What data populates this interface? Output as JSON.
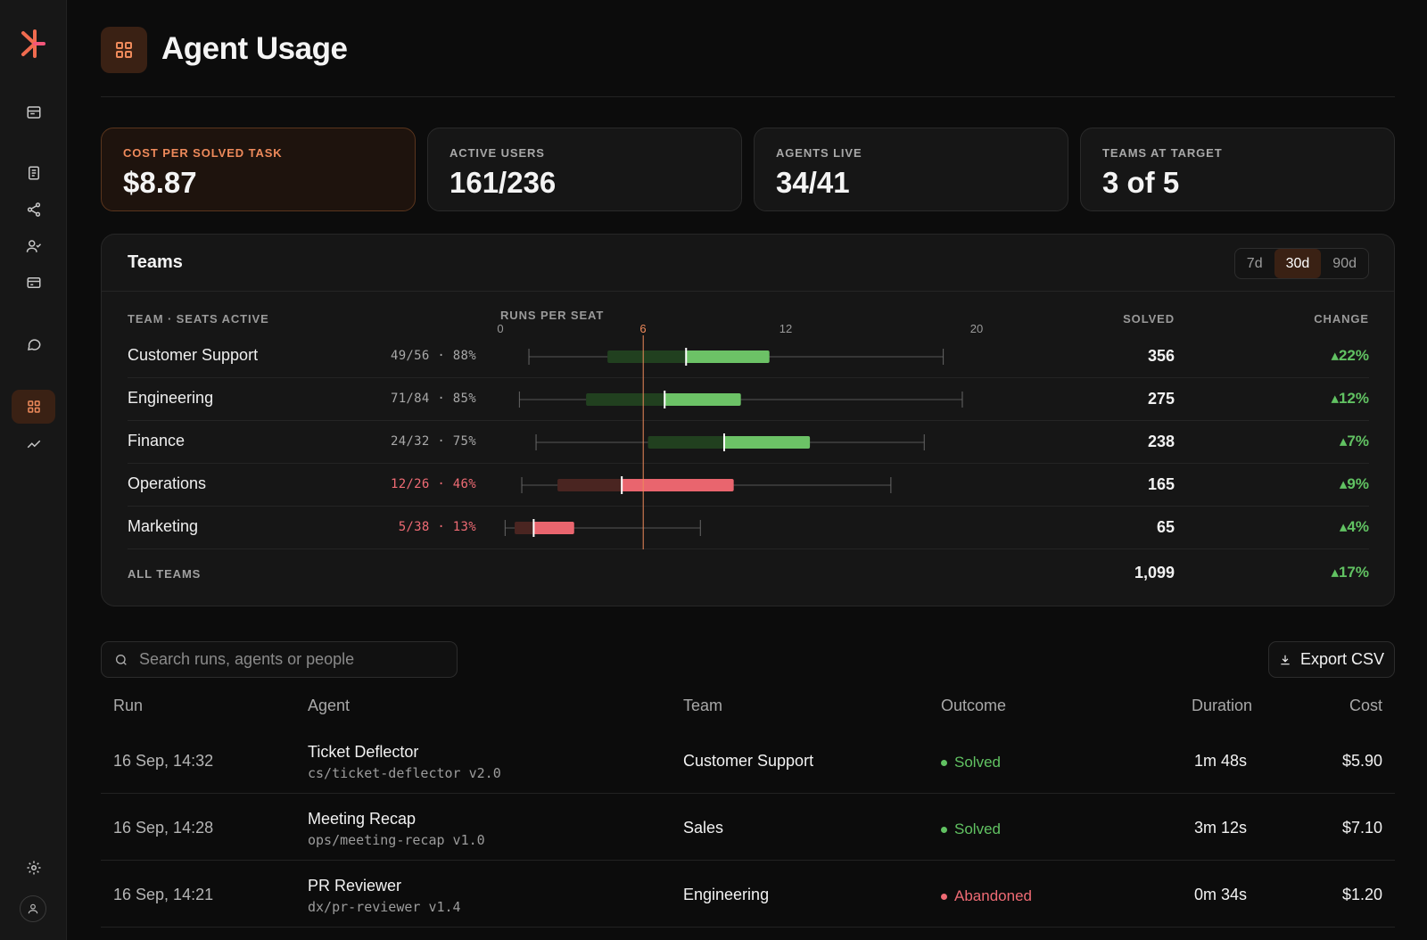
{
  "page": {
    "title": "Agent Usage"
  },
  "sidebar": {
    "items": [
      {
        "icon": "inbox-icon"
      },
      {
        "icon": "document-icon"
      },
      {
        "icon": "share-icon"
      },
      {
        "icon": "user-check-icon"
      },
      {
        "icon": "card-icon"
      },
      {
        "icon": "chat-icon"
      },
      {
        "icon": "grid-icon",
        "active": true
      },
      {
        "icon": "trend-icon"
      },
      {
        "icon": "gear-icon"
      },
      {
        "icon": "user-icon"
      }
    ]
  },
  "kpis": [
    {
      "label": "COST PER SOLVED TASK",
      "value": "$8.87"
    },
    {
      "label": "ACTIVE USERS",
      "value": "161/236"
    },
    {
      "label": "AGENTS LIVE",
      "value": "34/41"
    },
    {
      "label": "TEAMS AT TARGET",
      "value": "3 of 5"
    }
  ],
  "teams": {
    "title": "Teams",
    "ranges": [
      "7d",
      "30d",
      "90d"
    ],
    "active_range": "30d",
    "columns": {
      "team": "TEAM · SEATS ACTIVE",
      "runs": "RUNS PER SEAT",
      "solved": "SOLVED",
      "change": "CHANGE"
    },
    "axis_ticks": [
      "0",
      "6",
      "12",
      "20"
    ],
    "rows": [
      {
        "name": "Customer Support",
        "seats": "49/56 · 88%",
        "solved": "356",
        "change": "▴22%"
      },
      {
        "name": "Engineering",
        "seats": "71/84 · 85%",
        "solved": "275",
        "change": "▴12%"
      },
      {
        "name": "Finance",
        "seats": "24/32 · 75%",
        "solved": "238",
        "change": "▴7%"
      },
      {
        "name": "Operations",
        "seats": "12/26 · 46%",
        "solved": "165",
        "change": "▴9%"
      },
      {
        "name": "Marketing",
        "seats": "5/38 · 13%",
        "solved": "65",
        "change": "▴4%"
      }
    ],
    "total": {
      "label": "ALL TEAMS",
      "solved": "1,099",
      "change": "▴17%"
    }
  },
  "chart_data": {
    "type": "box",
    "title": "RUNS PER SEAT",
    "xlim": [
      0,
      20
    ],
    "target": 6,
    "categories": [
      "Customer Support",
      "Engineering",
      "Finance",
      "Operations",
      "Marketing"
    ],
    "series": [
      {
        "min": 1.2,
        "q1": 4.5,
        "median": 7.8,
        "q3": 11.3,
        "max": 18.6,
        "status": "ok"
      },
      {
        "min": 0.8,
        "q1": 3.6,
        "median": 6.9,
        "q3": 10.1,
        "max": 19.4,
        "status": "ok"
      },
      {
        "min": 1.5,
        "q1": 6.2,
        "median": 9.4,
        "q3": 13.0,
        "max": 17.8,
        "status": "ok"
      },
      {
        "min": 0.9,
        "q1": 2.4,
        "median": 5.1,
        "q3": 9.8,
        "max": 16.4,
        "status": "low"
      },
      {
        "min": 0.2,
        "q1": 0.6,
        "median": 1.4,
        "q3": 3.1,
        "max": 8.4,
        "status": "low"
      }
    ],
    "colors": {
      "ok_dark": "#21401f",
      "ok_light": "#6cc266",
      "low_dark": "#4a2521",
      "low_light": "#e9656e",
      "target": "#ee8a5b"
    }
  },
  "search": {
    "placeholder": "Search runs, agents or people"
  },
  "export": {
    "label": "Export CSV"
  },
  "runs": {
    "columns": {
      "run": "Run",
      "agent": "Agent",
      "team": "Team",
      "outcome": "Outcome",
      "duration": "Duration",
      "cost": "Cost"
    },
    "rows": [
      {
        "time": "16 Sep, 14:32",
        "agent": "Ticket Deflector",
        "agent_id": "cs/ticket-deflector v2.0",
        "team": "Customer Support",
        "outcome": "Solved",
        "duration": "1m 48s",
        "cost": "$5.90"
      },
      {
        "time": "16 Sep, 14:28",
        "agent": "Meeting Recap",
        "agent_id": "ops/meeting-recap v1.0",
        "team": "Sales",
        "outcome": "Solved",
        "duration": "3m 12s",
        "cost": "$7.10"
      },
      {
        "time": "16 Sep, 14:21",
        "agent": "PR Reviewer",
        "agent_id": "dx/pr-reviewer v1.4",
        "team": "Engineering",
        "outcome": "Abandoned",
        "duration": "0m 34s",
        "cost": "$1.20"
      }
    ]
  }
}
